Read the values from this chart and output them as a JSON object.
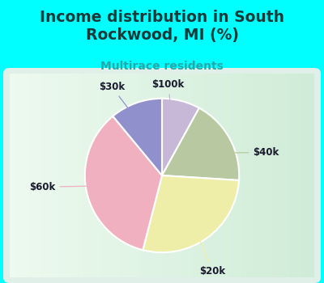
{
  "title": "Income distribution in South\nRockwood, MI (%)",
  "subtitle": "Multirace residents",
  "title_color": "#1a3a3a",
  "subtitle_color": "#22aaaa",
  "background_outer": "#00ffff",
  "figsize": [
    4.0,
    3.5
  ],
  "dpi": 100,
  "slices": [
    {
      "label": "$100k",
      "value": 8,
      "color": "#c8b8d8"
    },
    {
      "label": "$40k",
      "value": 18,
      "color": "#b8c8a0"
    },
    {
      "label": "$20k",
      "value": 28,
      "color": "#eeeea8"
    },
    {
      "label": "$60k",
      "value": 35,
      "color": "#f0b0c0"
    },
    {
      "label": "$30k",
      "value": 11,
      "color": "#9090cc"
    }
  ],
  "label_positions": {
    "$100k": {
      "xt": 0.08,
      "yt": 1.18
    },
    "$40k": {
      "xt": 1.35,
      "yt": 0.3
    },
    "$20k": {
      "xt": 0.65,
      "yt": -1.25
    },
    "$60k": {
      "xt": -1.55,
      "yt": -0.15
    },
    "$30k": {
      "xt": -0.65,
      "yt": 1.15
    }
  },
  "start_angle": 90,
  "counterclock": false
}
